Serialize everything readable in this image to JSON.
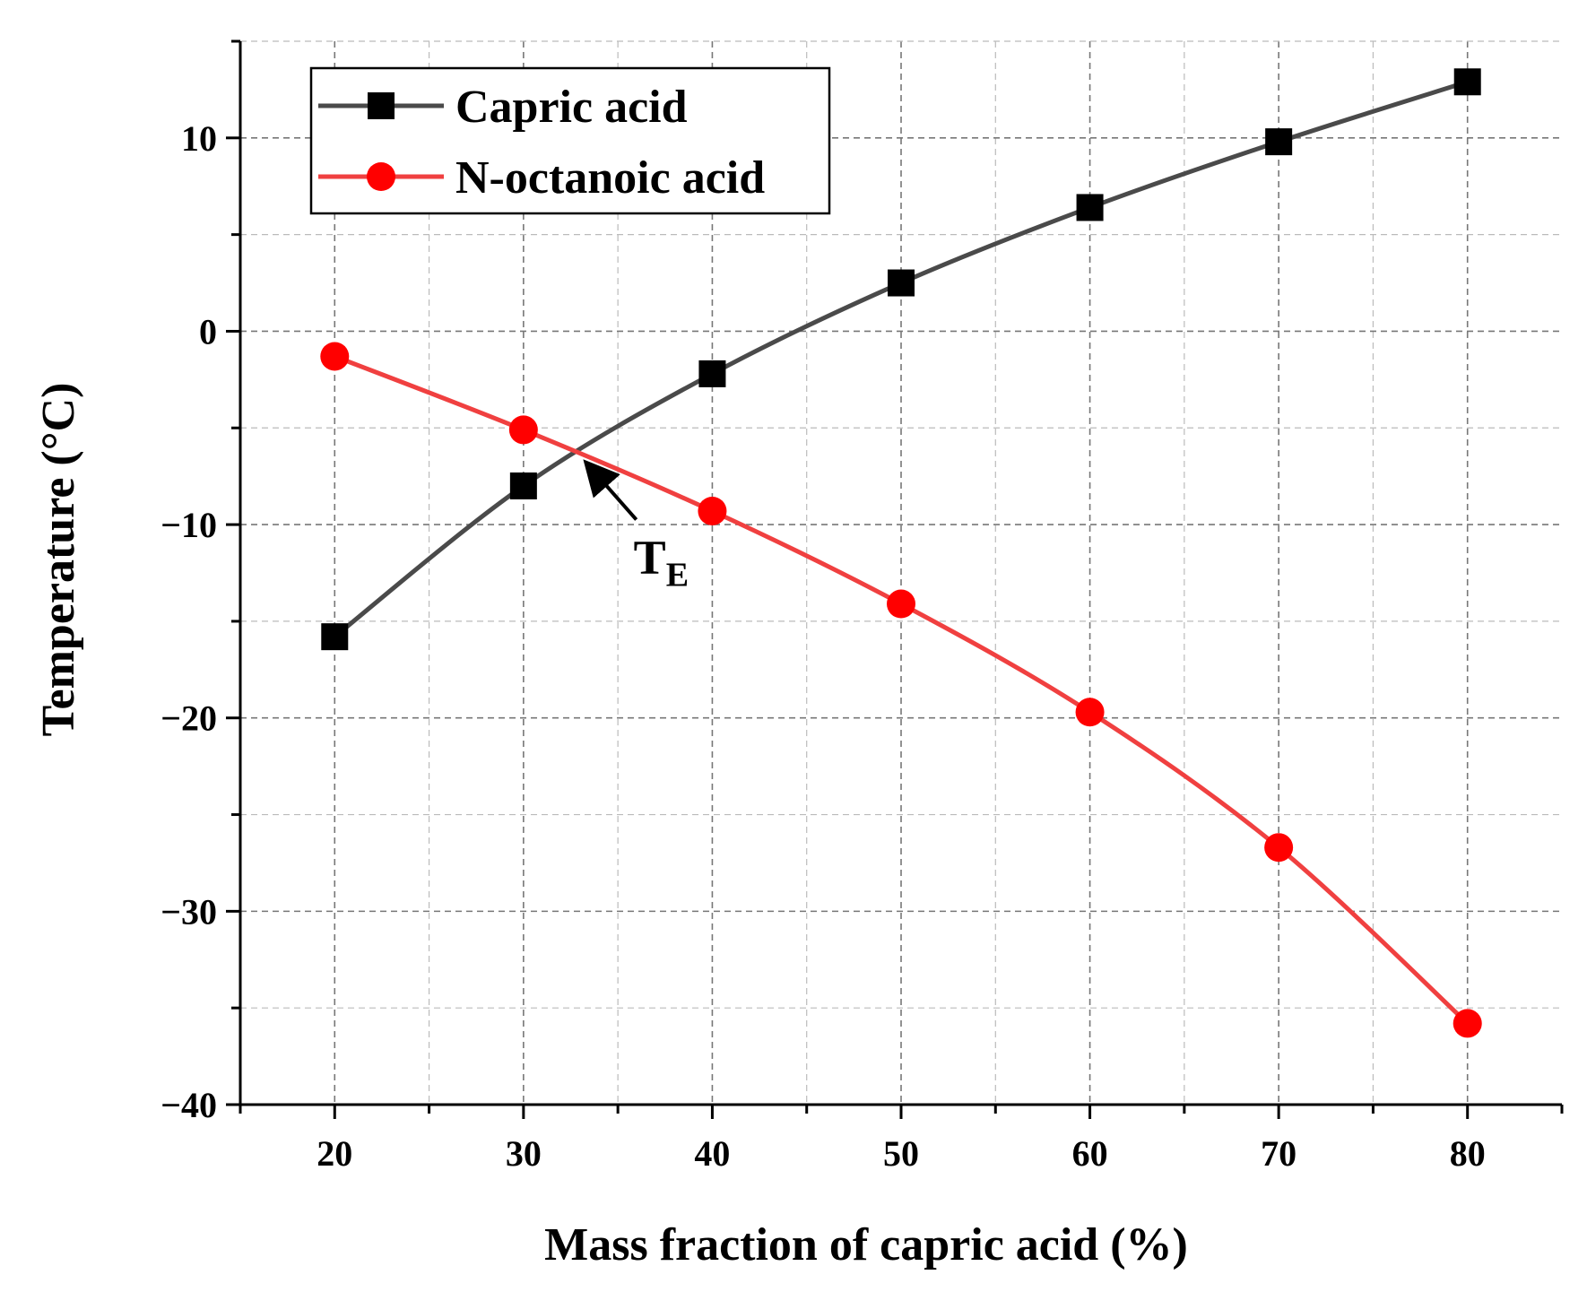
{
  "chart_data": {
    "type": "line",
    "title": "",
    "xlabel": "Mass fraction of capric acid (%)",
    "ylabel": "Temperature (°C)",
    "xlim": [
      15,
      85
    ],
    "ylim": [
      -40,
      15
    ],
    "x_ticks": [
      20,
      30,
      40,
      50,
      60,
      70,
      80
    ],
    "y_ticks": [
      -40,
      -30,
      -20,
      -10,
      0,
      10
    ],
    "x_tick_labels": [
      "20",
      "30",
      "40",
      "50",
      "60",
      "70",
      "80"
    ],
    "y_tick_labels": [
      "−40",
      "−30",
      "−20",
      "−10",
      "0",
      "10"
    ],
    "grid": true,
    "legend_position": "top-left",
    "x": [
      20,
      30,
      40,
      50,
      60,
      70,
      80
    ],
    "series": [
      {
        "name": "Capric acid",
        "color": "#4a4a4a",
        "marker": "square",
        "marker_color": "#000000",
        "values": [
          -15.8,
          -8.0,
          -2.2,
          2.5,
          6.4,
          9.8,
          12.9
        ]
      },
      {
        "name": "N-octanoic acid",
        "color": "#f04040",
        "marker": "circle",
        "marker_color": "#ff0000",
        "values": [
          -1.3,
          -5.1,
          -9.3,
          -14.1,
          -19.7,
          -26.7,
          -35.8
        ]
      }
    ],
    "annotations": [
      {
        "label_main": "T",
        "label_sub": "E",
        "points_to": {
          "x": 33,
          "y": -6.3
        },
        "text_at": {
          "x": 35.5,
          "y": -11.6
        }
      }
    ]
  }
}
